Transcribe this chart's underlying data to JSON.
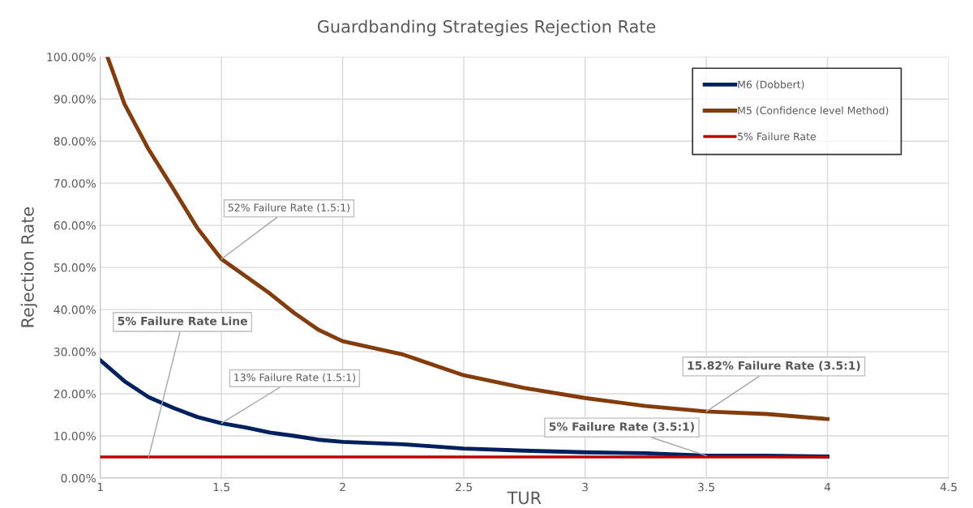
{
  "chart_data": {
    "type": "line",
    "title": "Guardbanding Strategies Rejection Rate",
    "xlabel": "TUR",
    "ylabel": "Rejection Rate",
    "series": [
      {
        "name": "M6 (Dobbert)",
        "color": "#002060",
        "x": [
          1.0,
          1.1,
          1.2,
          1.3,
          1.4,
          1.5,
          1.6,
          1.7,
          1.8,
          1.9,
          2.0,
          2.25,
          2.5,
          2.75,
          3.0,
          3.25,
          3.5,
          3.75,
          4.0
        ],
        "values": [
          28,
          23,
          19.2,
          16.7,
          14.5,
          13,
          12,
          10.8,
          10,
          9.1,
          8.6,
          8,
          7,
          6.5,
          6.1,
          5.9,
          5.3,
          5.3,
          5.1
        ]
      },
      {
        "name": "M5 (Confidence level Method)",
        "color": "#843c0c",
        "x": [
          1.03,
          1.1,
          1.2,
          1.3,
          1.4,
          1.5,
          1.7,
          1.8,
          1.9,
          2.0,
          2.25,
          2.5,
          2.75,
          3.0,
          3.25,
          3.5,
          3.75,
          4.0
        ],
        "values": [
          100,
          88.8,
          78,
          68.8,
          59.4,
          52,
          43.8,
          39.2,
          35.2,
          32.5,
          29.3,
          24.4,
          21.4,
          19,
          17.1,
          15.8,
          15.2,
          14
        ]
      },
      {
        "name": "5% Failure Rate",
        "color": "#c00000",
        "x": [
          1,
          4
        ],
        "values": [
          5,
          5
        ]
      }
    ],
    "xlim": [
      1,
      4.5
    ],
    "xticks": [
      1,
      1.5,
      2,
      2.5,
      3,
      3.5,
      4,
      4.5
    ],
    "ylim": [
      0,
      100
    ],
    "yticks": [
      {
        "value": 0,
        "label": "0.00%"
      },
      {
        "value": 10,
        "label": "10.00%"
      },
      {
        "value": 20,
        "label": "20.00%"
      },
      {
        "value": 30,
        "label": "30.00%"
      },
      {
        "value": 40,
        "label": "40.00%"
      },
      {
        "value": 50,
        "label": "50.00%"
      },
      {
        "value": 60,
        "label": "60.00%"
      },
      {
        "value": 70,
        "label": "70.00%"
      },
      {
        "value": 80,
        "label": "80.00%"
      },
      {
        "value": 90,
        "label": "90.00%"
      },
      {
        "value": 100,
        "label": "100.00%"
      }
    ],
    "annotations": [
      {
        "text": "52% Failure Rate (1.5:1)",
        "x": 1.5,
        "y": 52
      },
      {
        "text": "5% Failure Rate Line",
        "x": 1.2,
        "y": 5
      },
      {
        "text": "13% Failure Rate (1.5:1)",
        "x": 1.5,
        "y": 13
      },
      {
        "text": "15.82% Failure Rate (3.5:1)",
        "x": 3.5,
        "y": 15.8
      },
      {
        "text": "5% Failure Rate (3.5:1)",
        "x": 3.5,
        "y": 5.3
      }
    ],
    "grid": true,
    "legend": "top right",
    "marker": "none",
    "line_style": "solid"
  }
}
